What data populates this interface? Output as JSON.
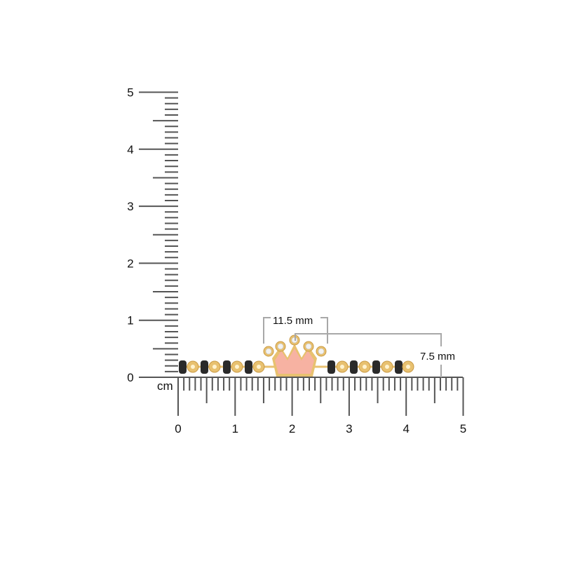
{
  "ruler": {
    "unit": "cm",
    "x_labels": [
      "0",
      "1",
      "2",
      "3",
      "4",
      "5"
    ],
    "y_labels": [
      "0",
      "1",
      "2",
      "3",
      "4",
      "5"
    ],
    "tick_color": "#555555"
  },
  "dimensions": {
    "width_label": "11.5 mm",
    "height_label": "7.5 mm",
    "line_color": "#a8a8a8"
  },
  "product": {
    "crown_color": "#f7b2a2",
    "gold_color": "#e8c170",
    "bead_color": "#2a2a2a"
  }
}
